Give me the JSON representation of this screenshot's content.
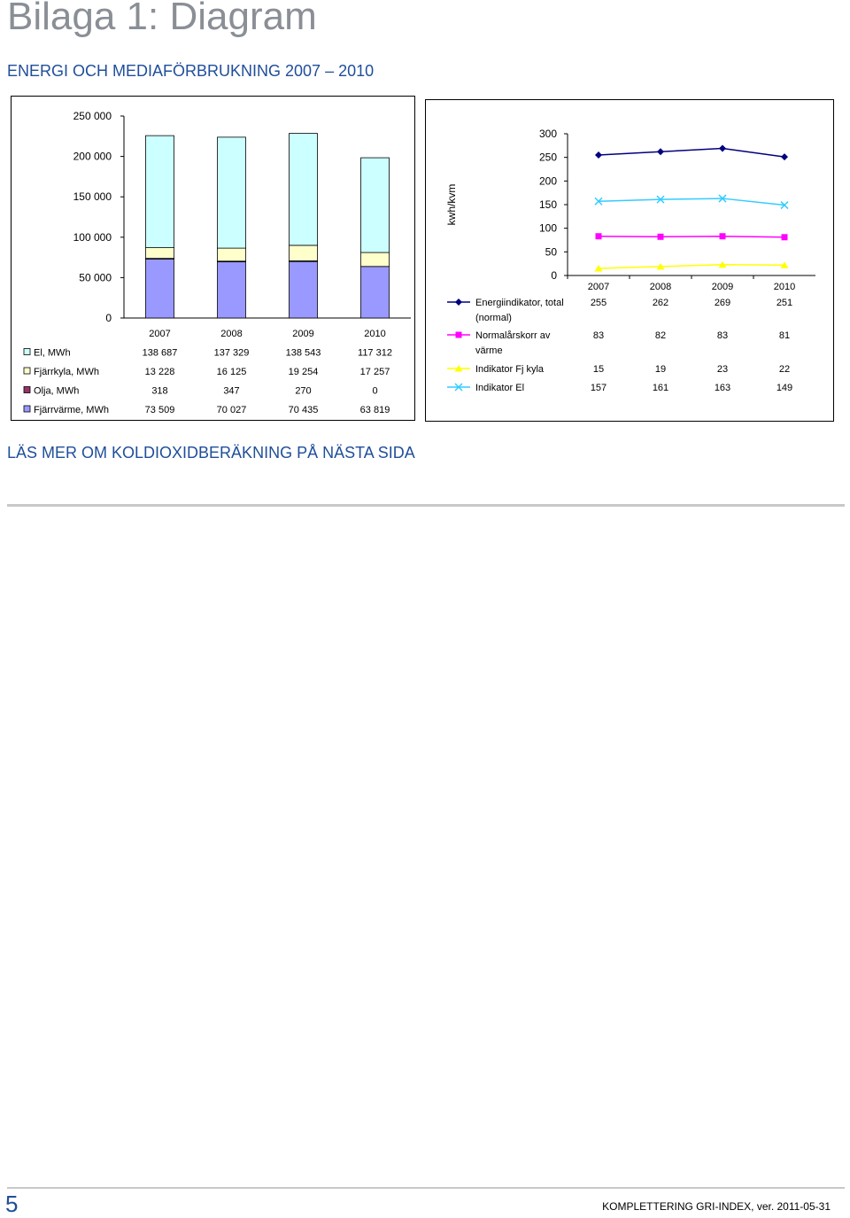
{
  "page": {
    "title": "Bilaga 1: Diagram",
    "subtitle": "ENERGI OCH MEDIAFÖRBRUKNING 2007 – 2010",
    "more_link": "LÄS MER OM KOLDIOXIDBERÄKNING PÅ NÄSTA SIDA",
    "page_number": "5",
    "footer": "KOMPLETTERING GRI-INDEX, ver. 2011-05-31"
  },
  "chart_data": [
    {
      "type": "bar",
      "stacked": true,
      "categories": [
        "2007",
        "2008",
        "2009",
        "2010"
      ],
      "ylim": [
        0,
        250000
      ],
      "y_ticks": [
        "0",
        "50 000",
        "100 000",
        "150 000",
        "200 000",
        "250 000"
      ],
      "grid": false,
      "legend": "table-left",
      "series": [
        {
          "name": "El, MWh",
          "values": [
            138687,
            137329,
            138543,
            117312
          ],
          "labels": [
            "138 687",
            "137 329",
            "138 543",
            "117 312"
          ],
          "color": "#ccffff"
        },
        {
          "name": "Fjärrkyla, MWh",
          "values": [
            13228,
            16125,
            19254,
            17257
          ],
          "labels": [
            "13 228",
            "16 125",
            "19 254",
            "17 257"
          ],
          "color": "#ffffcc"
        },
        {
          "name": "Olja, MWh",
          "values": [
            318,
            347,
            270,
            0
          ],
          "labels": [
            "318",
            "347",
            "270",
            "0"
          ],
          "color": "#993366"
        },
        {
          "name": "Fjärrvärme, MWh",
          "values": [
            73509,
            70027,
            70435,
            63819
          ],
          "labels": [
            "73 509",
            "70 027",
            "70 435",
            "63 819"
          ],
          "color": "#9999ff"
        }
      ],
      "stack_order_bottom_to_top": [
        "Fjärrvärme, MWh",
        "Olja, MWh",
        "Fjärrkyla, MWh",
        "El, MWh"
      ]
    },
    {
      "type": "line",
      "categories": [
        "2007",
        "2008",
        "2009",
        "2010"
      ],
      "ylabel": "kwh/kvm",
      "ylim": [
        0,
        300
      ],
      "y_ticks": [
        "0",
        "50",
        "100",
        "150",
        "200",
        "250",
        "300"
      ],
      "grid": false,
      "legend": "table-bottom",
      "series": [
        {
          "name": "Energiindikator, total (normal)",
          "name_lines": [
            "Energiindikator, total",
            "(normal)"
          ],
          "values": [
            255,
            262,
            269,
            251
          ],
          "color": "#000080",
          "marker": "diamond"
        },
        {
          "name": "Normalårskorr av värme",
          "name_lines": [
            "Normalårskorr av",
            "värme"
          ],
          "values": [
            83,
            82,
            83,
            81
          ],
          "color": "#ff00ff",
          "marker": "square"
        },
        {
          "name": "Indikator Fj kyla",
          "name_lines": [
            "Indikator Fj kyla"
          ],
          "values": [
            15,
            19,
            23,
            22
          ],
          "color": "#ffff00",
          "marker": "triangle"
        },
        {
          "name": "Indikator El",
          "name_lines": [
            "Indikator El"
          ],
          "values": [
            157,
            161,
            163,
            149
          ],
          "color": "#33ccff",
          "marker": "x"
        }
      ]
    }
  ]
}
